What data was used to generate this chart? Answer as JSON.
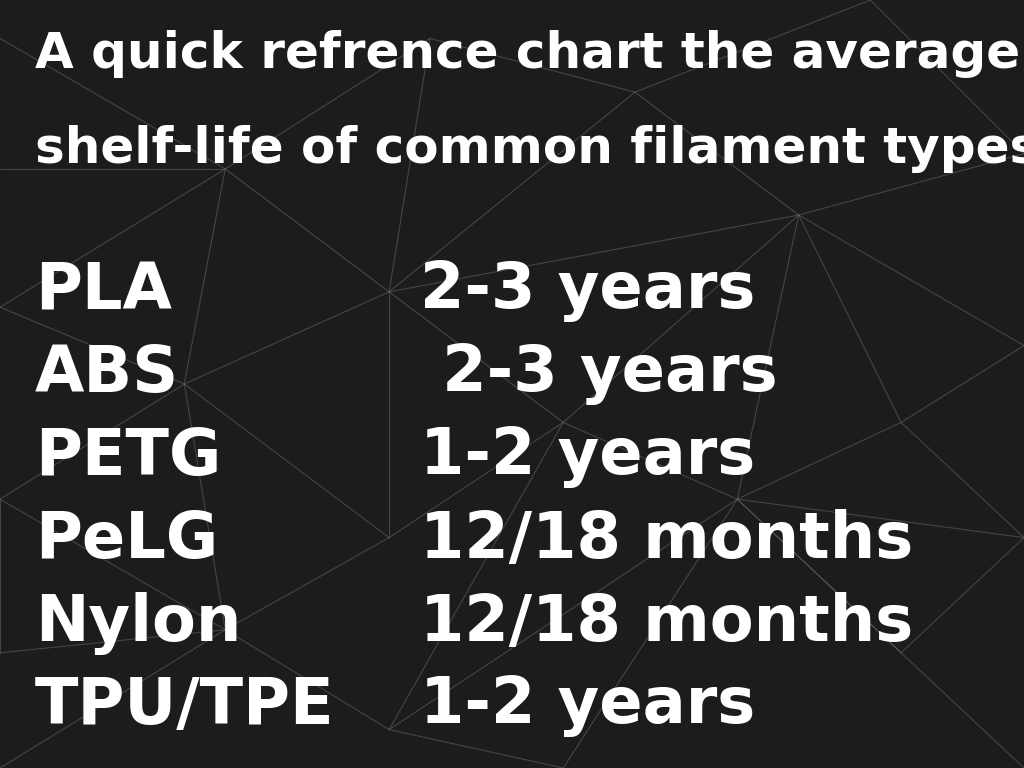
{
  "title_line1": "A quick refrence chart the average",
  "title_line2": "shelf-life of common filament types:",
  "filaments": [
    "PLA",
    "ABS",
    "PETG",
    "PeLG",
    "Nylon",
    "TPU/TPE"
  ],
  "shelf_lives": [
    "2-3 years",
    " 2-3 years",
    "1-2 years",
    "12/18 months",
    "12/18 months",
    "1-2 years"
  ],
  "background_color": "#1c1c1c",
  "text_color": "#ffffff",
  "line_color": "#666666",
  "title_fontsize": 36,
  "item_fontsize": 46,
  "fig_width": 10.24,
  "fig_height": 7.68,
  "dpi": 100,
  "lines": [
    [
      [
        0.0,
        0.95
      ],
      [
        0.22,
        0.78
      ]
    ],
    [
      [
        0.22,
        0.78
      ],
      [
        0.42,
        0.95
      ]
    ],
    [
      [
        0.42,
        0.95
      ],
      [
        0.62,
        0.88
      ]
    ],
    [
      [
        0.62,
        0.88
      ],
      [
        0.85,
        1.0
      ]
    ],
    [
      [
        0.62,
        0.88
      ],
      [
        0.78,
        0.72
      ]
    ],
    [
      [
        0.78,
        0.72
      ],
      [
        1.0,
        0.8
      ]
    ],
    [
      [
        0.85,
        1.0
      ],
      [
        1.0,
        0.8
      ]
    ],
    [
      [
        0.22,
        0.78
      ],
      [
        0.38,
        0.62
      ]
    ],
    [
      [
        0.38,
        0.62
      ],
      [
        0.42,
        0.95
      ]
    ],
    [
      [
        0.38,
        0.62
      ],
      [
        0.62,
        0.88
      ]
    ],
    [
      [
        0.38,
        0.62
      ],
      [
        0.78,
        0.72
      ]
    ],
    [
      [
        0.0,
        0.78
      ],
      [
        0.22,
        0.78
      ]
    ],
    [
      [
        0.0,
        0.6
      ],
      [
        0.22,
        0.78
      ]
    ],
    [
      [
        0.0,
        0.6
      ],
      [
        0.18,
        0.5
      ]
    ],
    [
      [
        0.18,
        0.5
      ],
      [
        0.22,
        0.78
      ]
    ],
    [
      [
        0.18,
        0.5
      ],
      [
        0.38,
        0.62
      ]
    ],
    [
      [
        0.78,
        0.72
      ],
      [
        1.0,
        0.55
      ]
    ],
    [
      [
        1.0,
        0.55
      ],
      [
        1.0,
        0.8
      ]
    ],
    [
      [
        0.78,
        0.72
      ],
      [
        0.88,
        0.45
      ]
    ],
    [
      [
        0.88,
        0.45
      ],
      [
        1.0,
        0.55
      ]
    ],
    [
      [
        0.88,
        0.45
      ],
      [
        1.0,
        0.3
      ]
    ],
    [
      [
        0.88,
        0.45
      ],
      [
        0.72,
        0.35
      ]
    ],
    [
      [
        0.72,
        0.35
      ],
      [
        1.0,
        0.3
      ]
    ],
    [
      [
        0.72,
        0.35
      ],
      [
        0.78,
        0.72
      ]
    ],
    [
      [
        0.72,
        0.35
      ],
      [
        0.55,
        0.45
      ]
    ],
    [
      [
        0.55,
        0.45
      ],
      [
        0.78,
        0.72
      ]
    ],
    [
      [
        0.55,
        0.45
      ],
      [
        0.38,
        0.62
      ]
    ],
    [
      [
        0.55,
        0.45
      ],
      [
        0.38,
        0.3
      ]
    ],
    [
      [
        0.38,
        0.3
      ],
      [
        0.38,
        0.62
      ]
    ],
    [
      [
        0.38,
        0.3
      ],
      [
        0.18,
        0.5
      ]
    ],
    [
      [
        0.38,
        0.3
      ],
      [
        0.22,
        0.18
      ]
    ],
    [
      [
        0.22,
        0.18
      ],
      [
        0.18,
        0.5
      ]
    ],
    [
      [
        0.22,
        0.18
      ],
      [
        0.0,
        0.35
      ]
    ],
    [
      [
        0.0,
        0.35
      ],
      [
        0.18,
        0.5
      ]
    ],
    [
      [
        0.22,
        0.18
      ],
      [
        0.38,
        0.05
      ]
    ],
    [
      [
        0.38,
        0.05
      ],
      [
        0.55,
        0.45
      ]
    ],
    [
      [
        0.38,
        0.05
      ],
      [
        0.72,
        0.35
      ]
    ],
    [
      [
        0.38,
        0.05
      ],
      [
        0.55,
        0.0
      ]
    ],
    [
      [
        0.55,
        0.0
      ],
      [
        0.72,
        0.35
      ]
    ],
    [
      [
        0.72,
        0.35
      ],
      [
        0.88,
        0.15
      ]
    ],
    [
      [
        0.88,
        0.15
      ],
      [
        0.72,
        0.35
      ]
    ],
    [
      [
        0.88,
        0.15
      ],
      [
        1.0,
        0.0
      ]
    ],
    [
      [
        0.88,
        0.15
      ],
      [
        1.0,
        0.3
      ]
    ],
    [
      [
        0.22,
        0.18
      ],
      [
        0.0,
        0.15
      ]
    ],
    [
      [
        0.0,
        0.15
      ],
      [
        0.0,
        0.35
      ]
    ],
    [
      [
        0.0,
        0.0
      ],
      [
        0.22,
        0.18
      ]
    ]
  ]
}
